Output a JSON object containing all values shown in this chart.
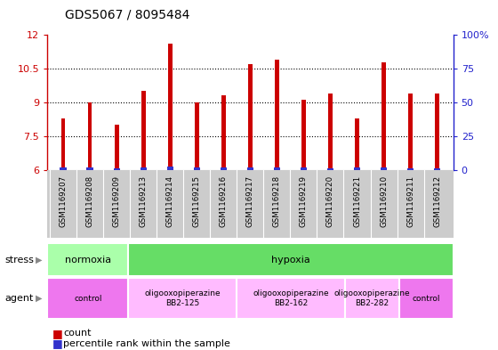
{
  "title": "GDS5067 / 8095484",
  "samples": [
    "GSM1169207",
    "GSM1169208",
    "GSM1169209",
    "GSM1169213",
    "GSM1169214",
    "GSM1169215",
    "GSM1169216",
    "GSM1169217",
    "GSM1169218",
    "GSM1169219",
    "GSM1169220",
    "GSM1169221",
    "GSM1169210",
    "GSM1169211",
    "GSM1169212"
  ],
  "count_values": [
    8.3,
    9.0,
    8.0,
    9.5,
    11.6,
    9.0,
    9.3,
    10.7,
    10.9,
    9.1,
    9.4,
    8.3,
    10.8,
    9.4,
    9.4
  ],
  "percentile_values": [
    6.12,
    6.1,
    6.07,
    6.1,
    6.13,
    6.09,
    6.1,
    6.11,
    6.09,
    6.1,
    6.08,
    6.1,
    6.1,
    6.08,
    6.08
  ],
  "bar_bottom": 6.0,
  "ylim_left": [
    6,
    12
  ],
  "yticks_left": [
    6,
    7.5,
    9,
    10.5,
    12
  ],
  "ytick_labels_left": [
    "6",
    "7.5",
    "9",
    "10.5",
    "12"
  ],
  "yticks_right_vals": [
    0,
    25,
    50,
    75,
    100
  ],
  "ytick_labels_right": [
    "0",
    "25",
    "50",
    "75",
    "100%"
  ],
  "count_color": "#cc0000",
  "percentile_color": "#3333cc",
  "bar_width": 0.15,
  "pct_bar_width": 0.25,
  "stress_groups": [
    {
      "label": "normoxia",
      "start": 0,
      "end": 3,
      "color": "#aaffaa"
    },
    {
      "label": "hypoxia",
      "start": 3,
      "end": 15,
      "color": "#66dd66"
    }
  ],
  "agent_groups": [
    {
      "label": "control",
      "start": 0,
      "end": 3,
      "color": "#ee77ee",
      "text": "control"
    },
    {
      "label": "oligooxopiperazine\nBB2-125",
      "start": 3,
      "end": 7,
      "color": "#ffbbff",
      "text": "oligooxopiperazine\nBB2-125"
    },
    {
      "label": "oligooxopiperazine\nBB2-162",
      "start": 7,
      "end": 11,
      "color": "#ffbbff",
      "text": "oligooxopiperazine\nBB2-162"
    },
    {
      "label": "oligooxopiperazine\nBB2-282",
      "start": 11,
      "end": 13,
      "color": "#ffbbff",
      "text": "oligooxopiperazine\nBB2-282"
    },
    {
      "label": "control",
      "start": 13,
      "end": 15,
      "color": "#ee77ee",
      "text": "control"
    }
  ],
  "stress_label": "stress",
  "agent_label": "agent",
  "legend_count_label": "count",
  "legend_pct_label": "percentile rank within the sample",
  "left_axis_color": "#cc0000",
  "right_axis_color": "#2222cc",
  "bg_color": "#ffffff",
  "tick_label_area_color": "#cccccc",
  "grid_color": "#888888"
}
